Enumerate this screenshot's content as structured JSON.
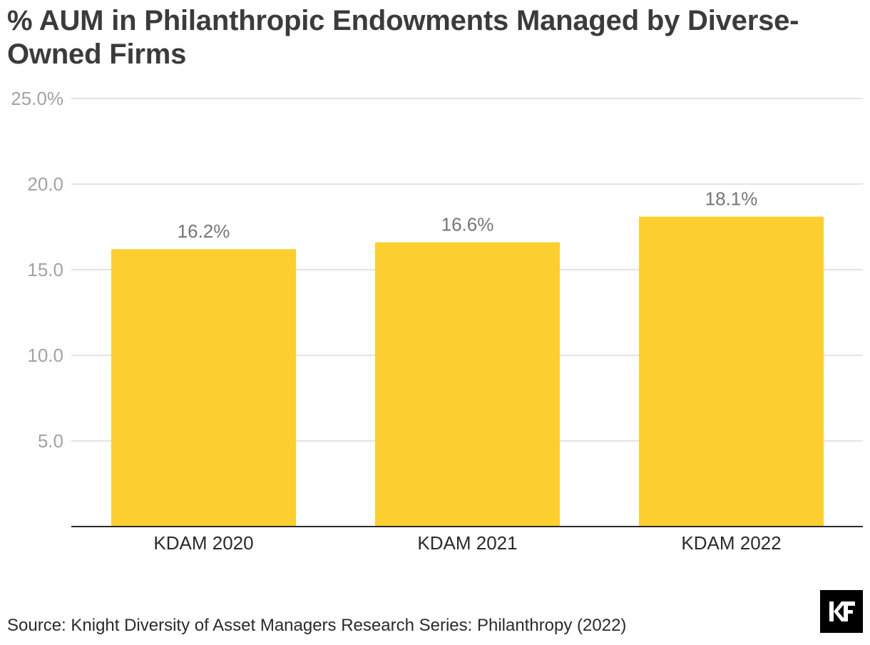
{
  "chart_data": {
    "type": "bar",
    "title": "% AUM in Philanthropic Endowments Managed by Diverse-Owned Firms",
    "categories": [
      "KDAM 2020",
      "KDAM 2021",
      "KDAM 2022"
    ],
    "values": [
      16.2,
      16.6,
      18.1
    ],
    "data_labels": [
      "16.2%",
      "16.6%",
      "18.1%"
    ],
    "xlabel": "",
    "ylabel": "",
    "ylim": [
      0,
      25
    ],
    "yticks": [
      5,
      10,
      15,
      20,
      25
    ],
    "ytick_labels": [
      "5.0",
      "10.0",
      "15.0",
      "20.0",
      "25.0%"
    ],
    "grid": true,
    "bar_color": "#fdce30",
    "source": "Source: Knight Diversity of Asset Managers Research Series: Philanthropy (2022)"
  },
  "logo": {
    "icon": "kf-logo-icon",
    "text": "KF",
    "color": "#000000"
  }
}
